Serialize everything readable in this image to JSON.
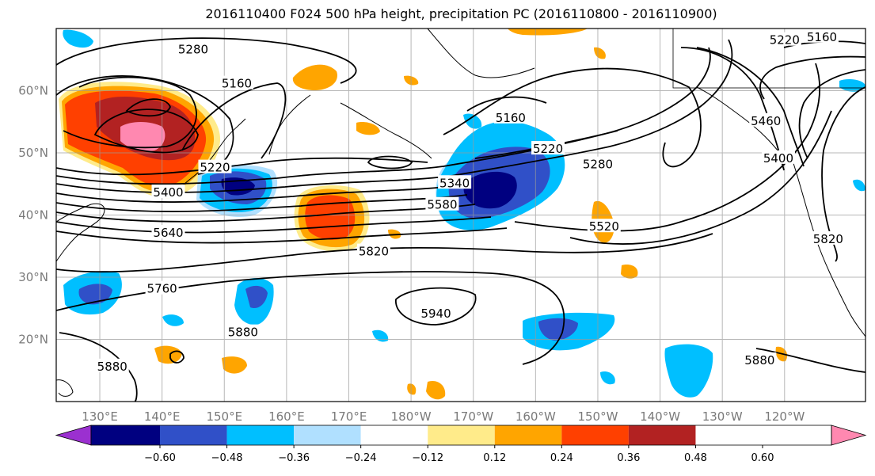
{
  "chart_data": {
    "type": "heatmap",
    "title": "2016110400 F024 500 hPa height, precipitation PC (2016110800 - 2016110900)",
    "x_ticks": [
      "130°E",
      "140°E",
      "150°E",
      "160°E",
      "170°E",
      "180°W",
      "170°W",
      "160°W",
      "150°W",
      "140°W",
      "130°W",
      "120°W"
    ],
    "y_ticks": [
      "20°N",
      "30°N",
      "40°N",
      "50°N",
      "60°N"
    ],
    "lon_range": [
      123,
      253
    ],
    "lat_range": [
      10,
      70
    ],
    "grid": true,
    "colorbar": {
      "ticks": [
        "−0.60",
        "−0.48",
        "−0.36",
        "−0.24",
        "−0.12",
        "0.12",
        "0.24",
        "0.36",
        "0.48",
        "0.60"
      ],
      "colors": [
        "#9b30d0",
        "#000080",
        "#3050c8",
        "#00bfff",
        "#b0e0ff",
        "#ffffff",
        "#ffeb8a",
        "#ffa500",
        "#ff4000",
        "#b22222",
        "#ff88b0"
      ],
      "extend": "both"
    },
    "contour_labels": [
      {
        "text": "5280",
        "lon": 145,
        "lat": 66.5
      },
      {
        "text": "5160",
        "lon": 152,
        "lat": 61
      },
      {
        "text": "5220",
        "lon": 148.5,
        "lat": 47.5
      },
      {
        "text": "5400",
        "lon": 141,
        "lat": 43.5
      },
      {
        "text": "5640",
        "lon": 141,
        "lat": 37
      },
      {
        "text": "5760",
        "lon": 140,
        "lat": 28
      },
      {
        "text": "5880",
        "lon": 153,
        "lat": 21
      },
      {
        "text": "5880",
        "lon": 132,
        "lat": 15.5
      },
      {
        "text": "5340",
        "lon": 187,
        "lat": 45
      },
      {
        "text": "5580",
        "lon": 185,
        "lat": 41.5
      },
      {
        "text": "5820",
        "lon": 174,
        "lat": 34
      },
      {
        "text": "5940",
        "lon": 184,
        "lat": 24
      },
      {
        "text": "5160",
        "lon": 196,
        "lat": 55.5
      },
      {
        "text": "5220",
        "lon": 202,
        "lat": 50.5
      },
      {
        "text": "5280",
        "lon": 210,
        "lat": 48
      },
      {
        "text": "5520",
        "lon": 211,
        "lat": 38
      },
      {
        "text": "5880",
        "lon": 236,
        "lat": 16.5
      },
      {
        "text": "5220",
        "lon": 240,
        "lat": 68
      },
      {
        "text": "5160",
        "lon": 246,
        "lat": 68.5
      },
      {
        "text": "5460",
        "lon": 237,
        "lat": 55
      },
      {
        "text": "5400",
        "lon": 239,
        "lat": 49
      },
      {
        "text": "5820",
        "lon": 247,
        "lat": 36
      }
    ]
  }
}
